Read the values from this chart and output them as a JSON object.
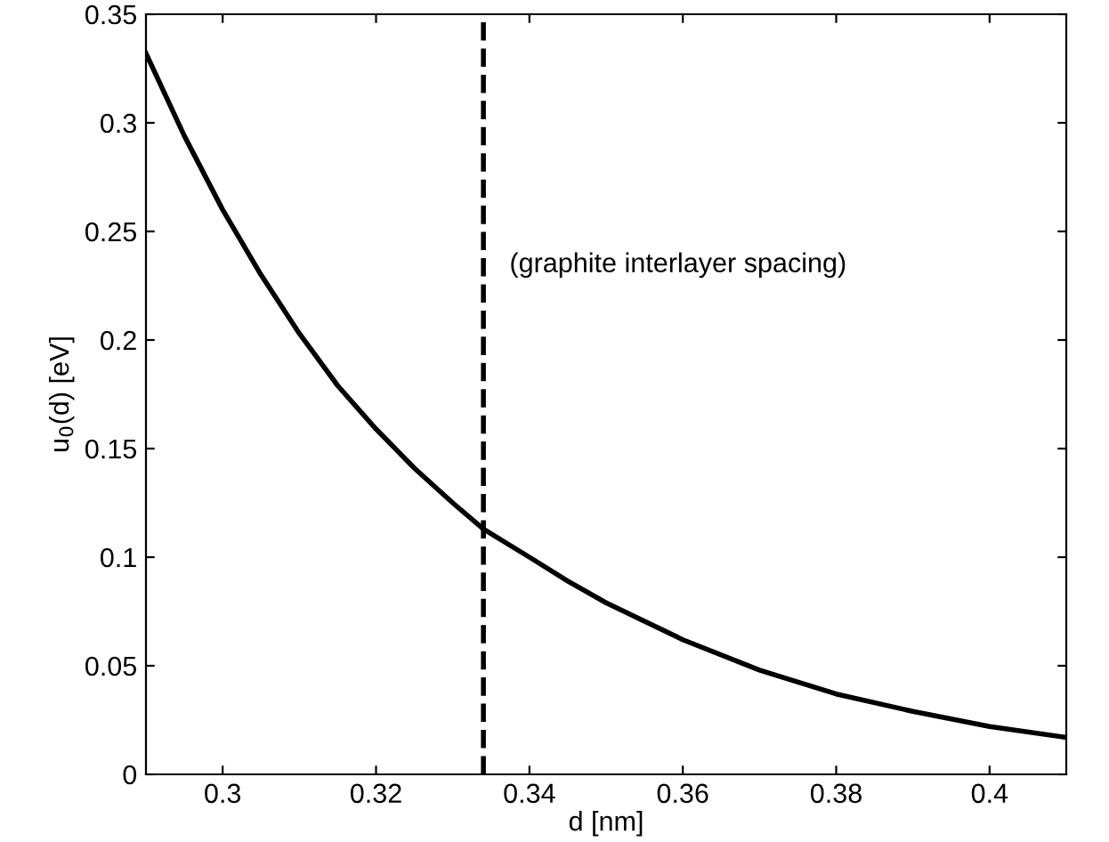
{
  "chart_data": {
    "type": "line",
    "xlabel": "d [nm]",
    "ylabel": "u$_{0}$(d) [eV]",
    "x": [
      0.29,
      0.295,
      0.3,
      0.305,
      0.31,
      0.315,
      0.32,
      0.325,
      0.33,
      0.334,
      0.34,
      0.345,
      0.35,
      0.36,
      0.37,
      0.38,
      0.39,
      0.4,
      0.41
    ],
    "series": [
      {
        "color": "#000000",
        "values": [
          0.332,
          0.294,
          0.26,
          0.23,
          0.203,
          0.179,
          0.159,
          0.141,
          0.125,
          0.113,
          0.1,
          0.089,
          0.079,
          0.062,
          0.048,
          0.037,
          0.029,
          0.022,
          0.017
        ]
      }
    ],
    "xlim": [
      0.29,
      0.41
    ],
    "ylim": [
      0,
      0.35
    ],
    "xticks": [
      0.3,
      0.32,
      0.34,
      0.36,
      0.38,
      0.4
    ],
    "yticks": [
      0,
      0.05,
      0.1,
      0.15,
      0.2,
      0.25,
      0.3,
      0.35
    ],
    "ref_lines": [
      {
        "axis": "x",
        "value": 0.334,
        "label": null,
        "color": "#000000",
        "line_style": "dashed"
      }
    ],
    "annotations": [
      "(graphite interlayer spacing)"
    ],
    "grid": false,
    "legend": false,
    "marker": "none",
    "line_style": "solid"
  }
}
